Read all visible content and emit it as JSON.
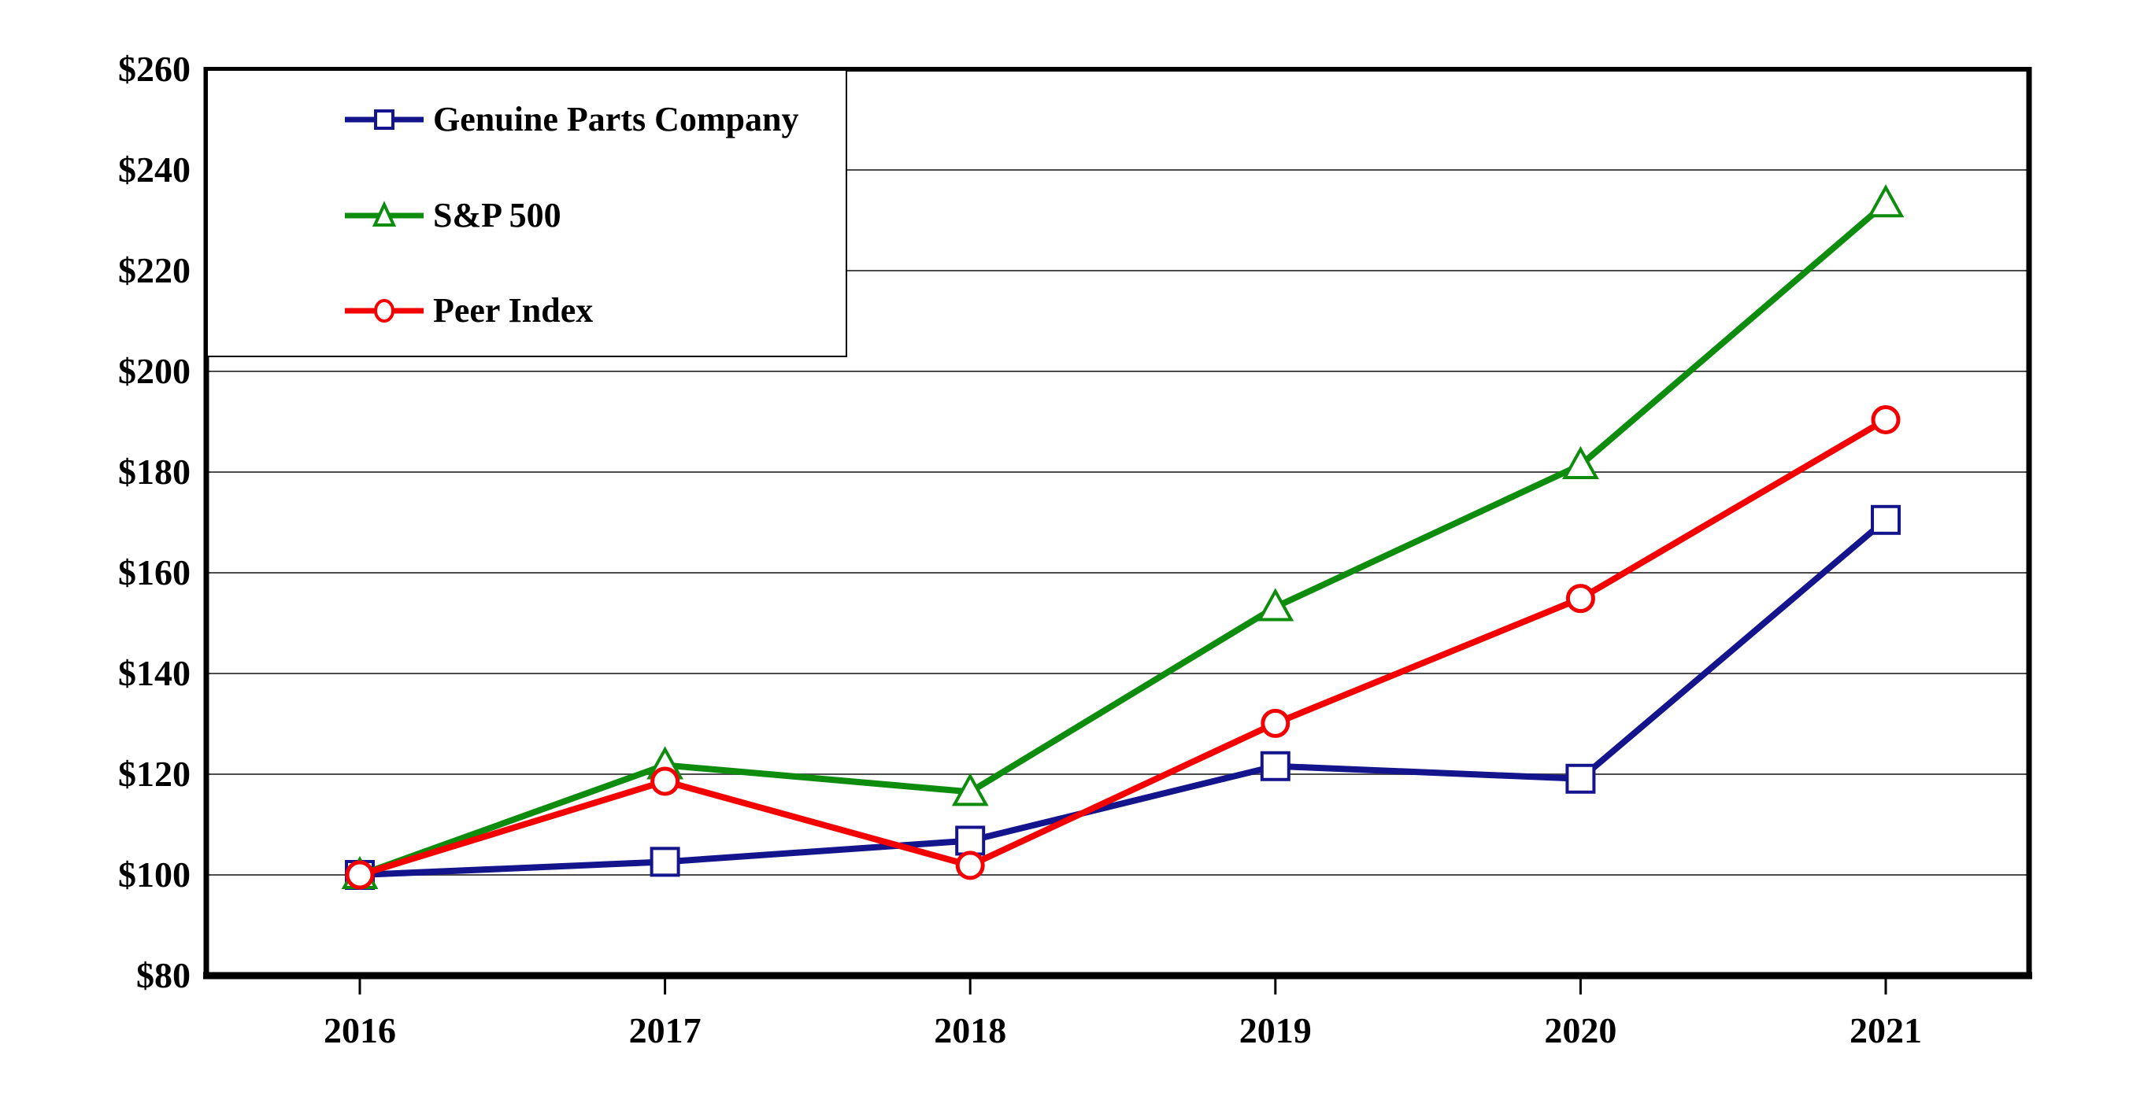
{
  "page": {
    "background": "#ffffff"
  },
  "chart_data": {
    "type": "line",
    "title": "",
    "xlabel": "",
    "ylabel": "",
    "categories": [
      "2016",
      "2017",
      "2018",
      "2019",
      "2020",
      "2021"
    ],
    "series": [
      {
        "name": "Genuine Parts Company",
        "marker": "square",
        "color": "#14148C",
        "values": [
          100.0,
          102.6,
          106.8,
          121.6,
          119.1,
          170.5
        ]
      },
      {
        "name": "S&P 500",
        "marker": "triangle",
        "color": "#0E8C0E",
        "values": [
          100.0,
          121.8,
          116.5,
          153.2,
          181.4,
          233.4
        ]
      },
      {
        "name": "Peer Index",
        "marker": "circle",
        "color": "#F40000",
        "values": [
          100.0,
          118.6,
          101.9,
          130.1,
          154.9,
          190.4
        ]
      }
    ],
    "ylim": [
      80,
      260
    ],
    "ytick_step": 20,
    "ytick_labels": [
      "$80",
      "$100",
      "$120",
      "$140",
      "$160",
      "$180",
      "$200",
      "$220",
      "$240",
      "$260"
    ],
    "grid": "horizontal",
    "gridline_color": "#4D4D4D",
    "axis_color": "#000000",
    "marker_fill": "#FFFFFF",
    "legend_position": "top-left"
  }
}
